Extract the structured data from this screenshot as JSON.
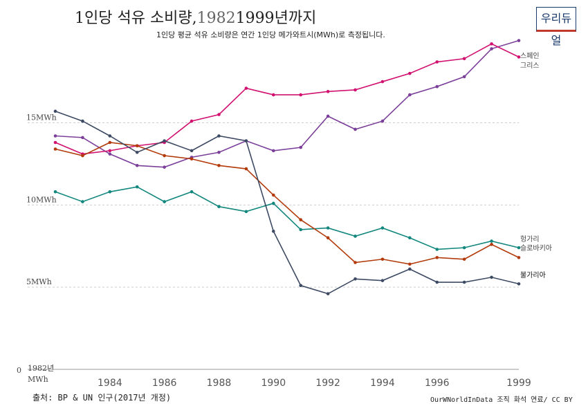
{
  "header": {
    "title_main": "1인당 석유 소비량,",
    "title_start": "1982",
    "title_end": "1999년까지",
    "subtitle": "1인당 평균 석유 소비량은 연간 1인당 메가와트시(MWh)로 측정됩니다."
  },
  "logo": {
    "text": "우리듀얼"
  },
  "footer": {
    "source": "출처: BP & UN 인구(2017년 개정)",
    "credit": "OurWNorldInData 조직 화석 연료/ CC BY"
  },
  "colors": {
    "spain": "#7b3f99",
    "greece": "#d1106f",
    "hungary": "#12877d",
    "slovakia": "#b23a0b",
    "bulgaria": "#3d4a63",
    "grid": "#cccccc"
  },
  "chart_data": {
    "type": "line",
    "x_start_label": "1982년",
    "y_zero_label": "0",
    "y_unit_label": "MWh",
    "x_ticks": [
      1984,
      1986,
      1988,
      1990,
      1992,
      1994,
      1996,
      1999
    ],
    "y_ticks": [
      {
        "value": 0,
        "label": ""
      },
      {
        "value": 5,
        "label": "5MWh"
      },
      {
        "value": 10,
        "label": "10MWh"
      },
      {
        "value": 15,
        "label": "15MWh"
      }
    ],
    "xlim": [
      1982,
      1999
    ],
    "ylim": [
      0,
      20.7
    ],
    "grid": true,
    "x": [
      1982,
      1983,
      1984,
      1985,
      1986,
      1987,
      1988,
      1989,
      1990,
      1991,
      1992,
      1993,
      1994,
      1995,
      1996,
      1997,
      1998,
      1999
    ],
    "series": [
      {
        "key": "spain",
        "name": "스페인",
        "values": [
          14.2,
          14.1,
          13.1,
          12.4,
          12.3,
          12.9,
          13.2,
          13.9,
          13.3,
          13.5,
          15.4,
          14.6,
          15.1,
          16.7,
          17.2,
          17.8,
          19.5,
          20.0
        ]
      },
      {
        "key": "greece",
        "name": "그리스",
        "values": [
          13.8,
          13.1,
          13.3,
          13.6,
          13.8,
          15.1,
          15.5,
          17.1,
          16.7,
          16.7,
          16.9,
          17.0,
          17.5,
          18.0,
          18.7,
          18.9,
          19.8,
          19.0
        ]
      },
      {
        "key": "hungary",
        "name": "헝가리",
        "values": [
          10.8,
          10.2,
          10.8,
          11.1,
          10.2,
          10.8,
          9.9,
          9.6,
          10.1,
          8.5,
          8.6,
          8.1,
          8.6,
          8.0,
          7.3,
          7.4,
          7.8,
          7.4
        ]
      },
      {
        "key": "slovakia",
        "name": "슬로바키아",
        "values": [
          13.4,
          13.0,
          13.8,
          13.6,
          13.0,
          12.8,
          12.4,
          12.2,
          10.6,
          9.1,
          8.0,
          6.5,
          6.7,
          6.4,
          6.8,
          6.7,
          7.6,
          6.8
        ]
      },
      {
        "key": "bulgaria",
        "name": "불가리아",
        "values": [
          15.7,
          15.1,
          14.2,
          13.2,
          13.9,
          13.3,
          14.2,
          13.9,
          8.4,
          5.1,
          4.6,
          5.5,
          5.4,
          6.1,
          5.3,
          5.3,
          5.6,
          5.2
        ]
      }
    ]
  }
}
